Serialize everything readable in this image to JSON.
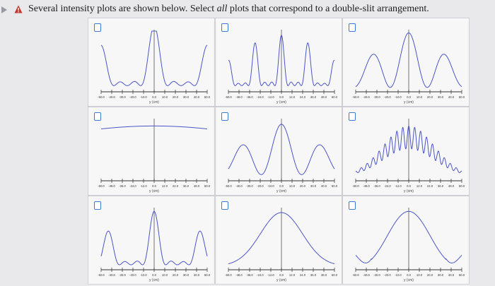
{
  "question": {
    "part1": "Several intensity plots are shown below. Select ",
    "emph": "all",
    "part2": " plots that correspond to a double-slit arrangement."
  },
  "icons": {
    "play": "play-triangle-icon",
    "warning": "warning-icon"
  },
  "accent_color": "#3a7bd5",
  "curve_color": "#4b55c7",
  "axis": {
    "ticks_a": [
      "-50.0",
      "-40.0",
      "-30.0",
      "-20.0",
      "-10.0",
      "0.0",
      "10.0",
      "20.0",
      "30.0",
      "40.0",
      "50.0"
    ],
    "ticks_b": [
      "-60.0",
      "-48.0",
      "-36.0",
      "-24.0",
      "-12.0",
      "0.0",
      "12.0",
      "24.0",
      "36.0",
      "48.0",
      "60.0"
    ],
    "xlabel": "y (cm)"
  },
  "plots": [
    {
      "id": "p1",
      "checked": false,
      "curve": "multi-slit-narrow"
    },
    {
      "id": "p2",
      "checked": false,
      "curve": "multi-slit-fine"
    },
    {
      "id": "p3",
      "checked": false,
      "curve": "double-slit-envelope"
    },
    {
      "id": "p4",
      "checked": false,
      "curve": "flat-with-spike"
    },
    {
      "id": "p5",
      "checked": false,
      "curve": "double-slit-modulated"
    },
    {
      "id": "p6",
      "checked": false,
      "curve": "many-slit-dense"
    },
    {
      "id": "p7",
      "checked": false,
      "curve": "multi-slit-narrow-2"
    },
    {
      "id": "p8",
      "checked": false,
      "curve": "single-slit-wide"
    },
    {
      "id": "p9",
      "checked": false,
      "curve": "single-slit-narrow"
    }
  ]
}
